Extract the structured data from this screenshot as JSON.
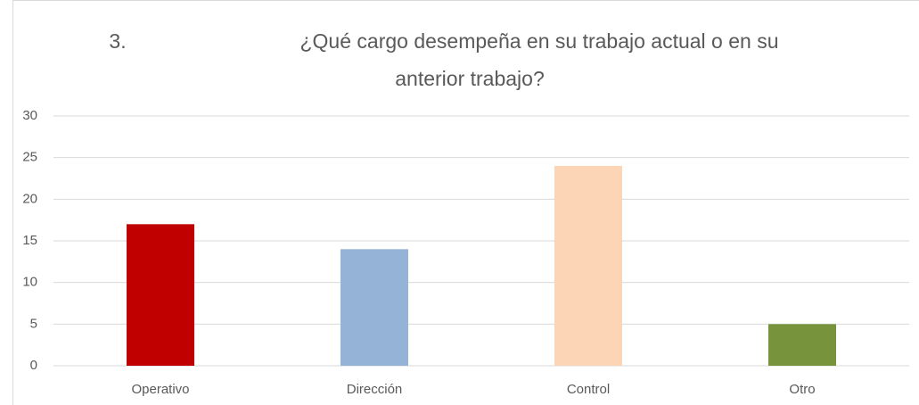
{
  "chart_data": {
    "type": "bar",
    "title": [
      "3.",
      "¿Qué cargo desempeña en su trabajo actual o en su",
      "anterior trabajo?"
    ],
    "categories": [
      "Operativo",
      "Dirección",
      "Control",
      "Otro"
    ],
    "values": [
      17,
      14,
      24,
      5
    ],
    "colors": [
      "#c00000",
      "#95b3d7",
      "#fbd5b5",
      "#77933c"
    ],
    "ylim": [
      0,
      30
    ],
    "yticks": [
      0,
      5,
      10,
      15,
      20,
      25,
      30
    ],
    "grid": true
  }
}
